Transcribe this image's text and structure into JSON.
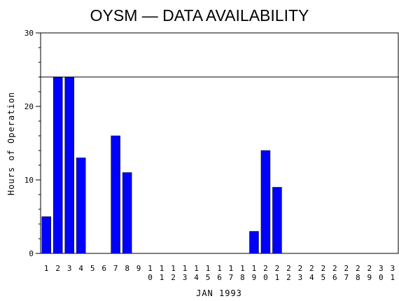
{
  "chart_data": {
    "type": "bar",
    "title": "OYSM — DATA AVAILABILITY",
    "xlabel": "JAN 1993",
    "ylabel": "Hours of Operation",
    "ylim": [
      0,
      30
    ],
    "yticks": [
      0,
      10,
      20,
      30
    ],
    "reference_line": 24,
    "categories": [
      "1",
      "2",
      "3",
      "4",
      "5",
      "6",
      "7",
      "8",
      "9",
      "10",
      "11",
      "12",
      "13",
      "14",
      "15",
      "16",
      "17",
      "18",
      "19",
      "20",
      "21",
      "22",
      "23",
      "24",
      "25",
      "26",
      "27",
      "28",
      "29",
      "30",
      "31"
    ],
    "values": [
      5,
      24,
      24,
      13,
      0,
      0,
      16,
      11,
      0,
      0,
      0,
      0,
      0,
      0,
      0,
      0,
      0,
      0,
      3,
      14,
      9,
      0,
      0,
      0,
      0,
      0,
      0,
      0,
      0,
      0,
      0
    ],
    "bar_color": "#0000ff",
    "grid": false
  }
}
